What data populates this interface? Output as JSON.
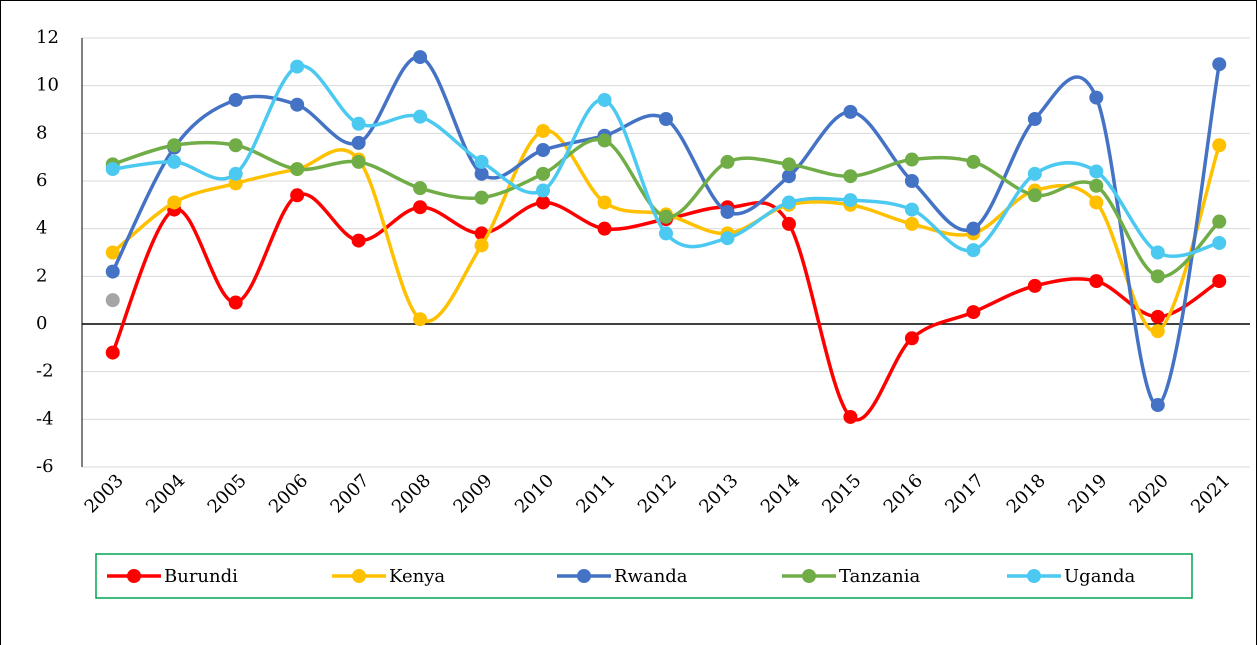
{
  "chart_data": {
    "type": "line",
    "categories": [
      "2003",
      "2004",
      "2005",
      "2006",
      "2007",
      "2008",
      "2009",
      "2010",
      "2011",
      "2012",
      "2013",
      "2014",
      "2015",
      "2016",
      "2017",
      "2018",
      "2019",
      "2020",
      "2021"
    ],
    "series": [
      {
        "name": "Burundi",
        "color": "#ff0000",
        "values": [
          -1.2,
          4.8,
          0.9,
          5.4,
          3.5,
          4.9,
          3.8,
          5.1,
          4.0,
          4.4,
          4.9,
          4.2,
          -3.9,
          -0.6,
          0.5,
          1.6,
          1.8,
          0.3,
          1.8
        ]
      },
      {
        "name": "Kenya",
        "color": "#ffc000",
        "values": [
          3.0,
          5.1,
          5.9,
          6.5,
          6.9,
          0.2,
          3.3,
          8.1,
          5.1,
          4.6,
          3.8,
          5.0,
          5.0,
          4.2,
          3.8,
          5.6,
          5.1,
          -0.3,
          7.5
        ]
      },
      {
        "name": "Rwanda",
        "color": "#4472c4",
        "values": [
          2.2,
          7.4,
          9.4,
          9.2,
          7.6,
          11.2,
          6.3,
          7.3,
          7.9,
          8.6,
          4.7,
          6.2,
          8.9,
          6.0,
          4.0,
          8.6,
          9.5,
          -3.4,
          10.9
        ]
      },
      {
        "name": "Tanzania",
        "color": "#70ad47",
        "values": [
          6.7,
          7.5,
          7.5,
          6.5,
          6.8,
          5.7,
          5.3,
          6.3,
          7.7,
          4.5,
          6.8,
          6.7,
          6.2,
          6.9,
          6.8,
          5.4,
          5.8,
          2.0,
          4.3
        ]
      },
      {
        "name": "Uganda",
        "color": "#4cc9f0",
        "values": [
          6.5,
          6.8,
          6.3,
          10.8,
          8.4,
          8.7,
          6.8,
          5.6,
          9.4,
          3.8,
          3.6,
          5.1,
          5.2,
          4.8,
          3.1,
          6.3,
          6.4,
          3.0,
          3.4
        ]
      },
      {
        "color": "#a5a5a5",
        "values": [
          1.0,
          null,
          null,
          null,
          null,
          null,
          null,
          null,
          null,
          null,
          null,
          null,
          null,
          null,
          null,
          null,
          null,
          null,
          null
        ]
      }
    ],
    "ylim": [
      -6,
      12
    ],
    "yticks": [
      -6,
      -4,
      -2,
      0,
      2,
      4,
      6,
      8,
      10,
      12
    ],
    "grid": true,
    "smooth": true,
    "legend": "bottom"
  }
}
